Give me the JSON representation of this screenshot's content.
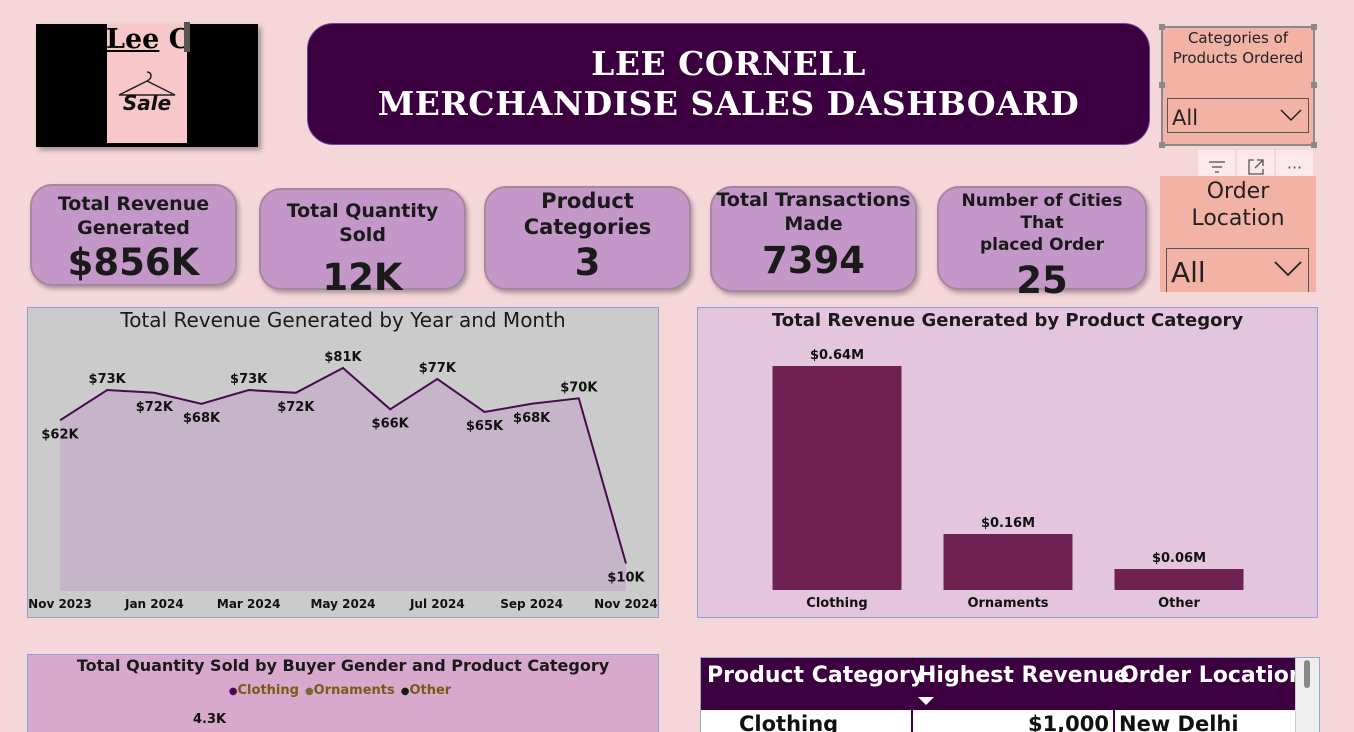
{
  "logo": {
    "text_underlined": "Lee",
    "text_rest": " C",
    "sale_text": "Sale"
  },
  "header": {
    "line1": "LEE CORNELL",
    "line2": "MERCHANDISE SALES DASHBOARD"
  },
  "slicers": {
    "categories": {
      "title_line1": "Categories of",
      "title_line2": "Products Ordered",
      "value": "All"
    },
    "location": {
      "title_line1": "Order",
      "title_line2": "Location",
      "value": "All"
    }
  },
  "toolbar": {
    "filter_icon": "filter-icon",
    "focus_icon": "focus-mode-icon",
    "more_icon": "more-options-icon",
    "more_glyph": "···"
  },
  "kpis": [
    {
      "label_line1": "Total Revenue",
      "label_line2": "Generated",
      "value": "$856K"
    },
    {
      "label_line1": "Total Quantity Sold",
      "label_line2": "",
      "value": "12K"
    },
    {
      "label_line1": "Product",
      "label_line2": "Categories",
      "value": "3"
    },
    {
      "label_line1": "Total Transactions",
      "label_line2": "Made",
      "value": "7394"
    },
    {
      "label_line1": "Number of Cities That",
      "label_line2": "placed Order",
      "value": "25"
    }
  ],
  "chart_data": [
    {
      "type": "area",
      "title": "Total Revenue Generated by Year and Month",
      "x": [
        "Nov 2023",
        "Dec 2023",
        "Jan 2024",
        "Feb 2024",
        "Mar 2024",
        "Apr 2024",
        "May 2024",
        "Jun 2024",
        "Jul 2024",
        "Aug 2024",
        "Sep 2024",
        "Oct 2024",
        "Nov 2024"
      ],
      "xtick_labels": [
        "Nov 2023",
        "Jan 2024",
        "Mar 2024",
        "May 2024",
        "Jul 2024",
        "Sep 2024",
        "Nov 2024"
      ],
      "values": [
        62,
        73,
        72,
        68,
        73,
        72,
        81,
        66,
        77,
        65,
        68,
        70,
        10
      ],
      "data_labels": [
        "$62K",
        "$73K",
        "$72K",
        "$68K",
        "$73K",
        "$72K",
        "$81K",
        "$66K",
        "$77K",
        "$65K",
        "$68K",
        "$70K",
        "$10K"
      ],
      "ylim": [
        0,
        81
      ],
      "line_color": "#4a0a52",
      "fill_color": "#c6b5c9"
    },
    {
      "type": "bar",
      "title": "Total Revenue Generated by Product Category",
      "categories": [
        "Clothing",
        "Ornaments",
        "Other"
      ],
      "values": [
        0.64,
        0.16,
        0.06
      ],
      "data_labels": [
        "$0.64M",
        "$0.16M",
        "$0.06M"
      ],
      "ylim": [
        0,
        0.64
      ],
      "bar_color": "#6f2152"
    },
    {
      "type": "bar",
      "title": "Total Quantity Sold by Buyer Gender and Product Category",
      "legend": [
        {
          "name": "Clothing",
          "color": "#4a0a52"
        },
        {
          "name": "Ornaments",
          "color": "#7a6a3a"
        },
        {
          "name": "Other",
          "color": "#1a1a1a"
        }
      ],
      "visible_data_labels": [
        "4.3K"
      ],
      "legend_text_color": "#7a5a14"
    }
  ],
  "table": {
    "headers": [
      "Product Category",
      "Highest Revenue",
      "Order Location"
    ],
    "rows": [
      [
        "Clothing",
        "$1,000",
        "New Delhi"
      ]
    ]
  }
}
